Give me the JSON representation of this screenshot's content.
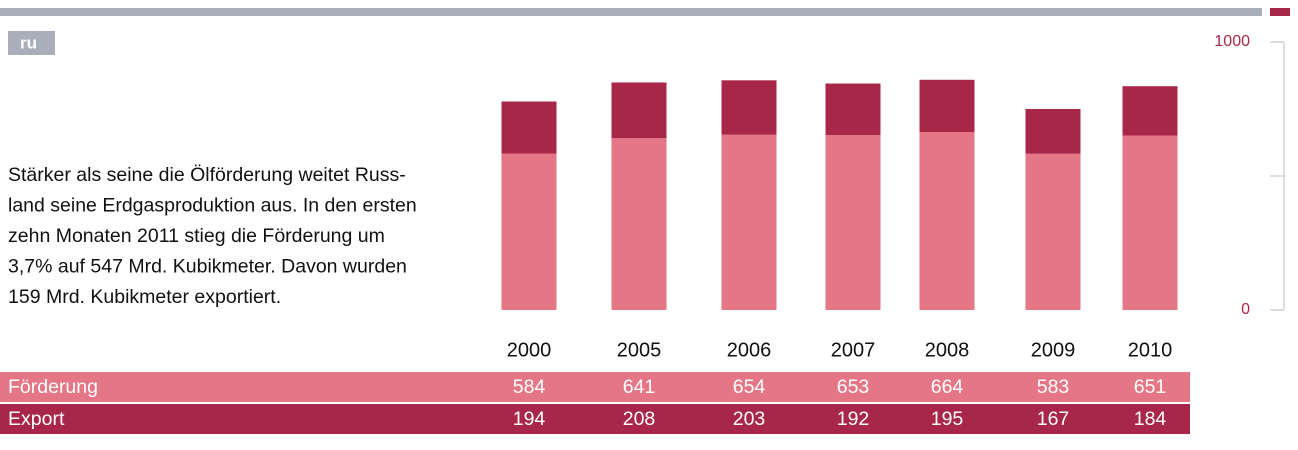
{
  "badge": "ru",
  "description": [
    "Stärker als seine die Ölförderung weitet Russ-",
    "land seine Erdgasproduktion aus. In den ersten",
    "zehn Monaten 2011 stieg die Förderung um",
    "3,7% auf 547 Mrd. Kubikmeter. Davon wurden",
    "159 Mrd. Kubikmeter exportiert."
  ],
  "chart_data": {
    "type": "bar",
    "stacked": true,
    "categories": [
      "2000",
      "2005",
      "2006",
      "2007",
      "2008",
      "2009",
      "2010"
    ],
    "series": [
      {
        "name": "Förderung",
        "color": "#e57686",
        "values": [
          584,
          641,
          654,
          653,
          664,
          583,
          651
        ]
      },
      {
        "name": "Export",
        "color": "#a82749",
        "values": [
          194,
          208,
          203,
          192,
          195,
          167,
          184
        ]
      }
    ],
    "ylim": [
      0,
      1000
    ],
    "yticks": [
      0,
      1000
    ],
    "yminorticks": [
      500
    ]
  }
}
